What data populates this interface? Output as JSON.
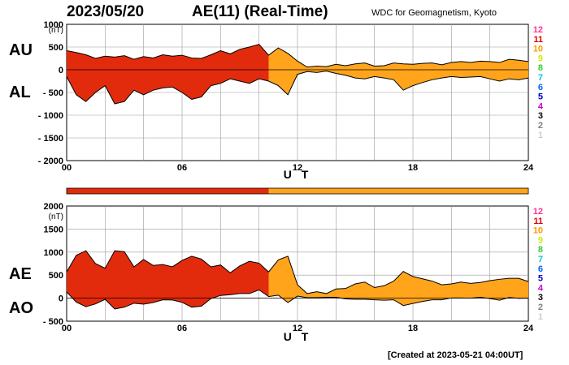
{
  "header": {
    "date": "2023/05/20",
    "title": "AE(11) (Real-Time)",
    "source": "WDC for Geomagnetism, Kyoto",
    "created": "[Created at 2023-05-21 04:00UT]"
  },
  "colors": {
    "k1": "#cccccc",
    "k2": "#808080",
    "k3": "#000000",
    "k4": "#cc00cc",
    "k5": "#0000cc",
    "k6": "#0066ff",
    "k7": "#00cccc",
    "k8": "#33cc33",
    "k9": "#ccee00",
    "k10": "#ff9900",
    "k11": "#dd0000",
    "k12": "#ff3399",
    "stations_key_10": "#ffaa00",
    "stations_key_11": "#cc3333"
  },
  "station_key": [
    "12",
    "11",
    "10",
    "9",
    "8",
    "7",
    "6",
    "5",
    "4",
    "3",
    "2",
    "1"
  ],
  "chart_data": [
    {
      "type": "area",
      "panel": "AU/AL",
      "labels": {
        "upper": "AU",
        "lower": "AL"
      },
      "unit": "(nT)",
      "xlabel": "U T",
      "ylim": [
        -2000,
        1000
      ],
      "yticks": [
        "1000",
        "500",
        "0",
        "- 500",
        "- 1000",
        "- 1500",
        "- 2000"
      ],
      "yticks_values": [
        1000,
        500,
        0,
        -500,
        -1000,
        -1500,
        -2000
      ],
      "xlim": [
        0,
        24
      ],
      "xticks": [
        "00",
        "06",
        "12",
        "18",
        "24"
      ],
      "grid": true,
      "x": [
        0,
        0.5,
        1,
        1.5,
        2,
        2.5,
        3,
        3.5,
        4,
        4.5,
        5,
        5.5,
        6,
        6.5,
        7,
        7.5,
        8,
        8.5,
        9,
        9.5,
        10,
        10.5,
        11,
        11.5,
        12,
        12.5,
        13,
        13.5,
        14,
        14.5,
        15,
        15.5,
        16,
        16.5,
        17,
        17.5,
        18,
        18.5,
        19,
        19.5,
        20,
        20.5,
        21,
        21.5,
        22,
        22.5,
        23,
        23.5,
        24
      ],
      "series": [
        {
          "name": "AU",
          "values": [
            420,
            380,
            330,
            250,
            300,
            280,
            310,
            230,
            290,
            260,
            330,
            300,
            320,
            260,
            250,
            330,
            420,
            350,
            450,
            500,
            560,
            320,
            480,
            360,
            190,
            60,
            80,
            70,
            120,
            90,
            130,
            150,
            80,
            90,
            150,
            130,
            120,
            140,
            150,
            110,
            160,
            180,
            160,
            190,
            180,
            160,
            230,
            210,
            180
          ]
        },
        {
          "name": "AL",
          "values": [
            -150,
            -550,
            -700,
            -500,
            -350,
            -750,
            -700,
            -450,
            -550,
            -450,
            -400,
            -380,
            -500,
            -650,
            -600,
            -350,
            -300,
            -200,
            -250,
            -300,
            -200,
            -250,
            -350,
            -550,
            -100,
            -40,
            -60,
            -30,
            -80,
            -120,
            -180,
            -200,
            -150,
            -180,
            -220,
            -450,
            -350,
            -280,
            -220,
            -180,
            -150,
            -170,
            -160,
            -150,
            -200,
            -250,
            -200,
            -220,
            -180
          ]
        }
      ],
      "station_count_bands": [
        {
          "from": 0,
          "to": 10.5,
          "stations": 11
        },
        {
          "from": 10.5,
          "to": 24,
          "stations": 10
        }
      ]
    },
    {
      "type": "area",
      "panel": "AE/AO",
      "labels": {
        "upper": "AE",
        "lower": "AO"
      },
      "unit": "(nT)",
      "xlabel": "U T",
      "ylim": [
        -500,
        2000
      ],
      "yticks": [
        "2000",
        "1500",
        "1000",
        "500",
        "0",
        "- 500"
      ],
      "yticks_values": [
        2000,
        1500,
        1000,
        500,
        0,
        -500
      ],
      "xlim": [
        0,
        24
      ],
      "xticks": [
        "00",
        "06",
        "12",
        "18",
        "24"
      ],
      "grid": true,
      "x": [
        0,
        0.5,
        1,
        1.5,
        2,
        2.5,
        3,
        3.5,
        4,
        4.5,
        5,
        5.5,
        6,
        6.5,
        7,
        7.5,
        8,
        8.5,
        9,
        9.5,
        10,
        10.5,
        11,
        11.5,
        12,
        12.5,
        13,
        13.5,
        14,
        14.5,
        15,
        15.5,
        16,
        16.5,
        17,
        17.5,
        18,
        18.5,
        19,
        19.5,
        20,
        20.5,
        21,
        21.5,
        22,
        22.5,
        23,
        23.5,
        24
      ],
      "series": [
        {
          "name": "AE",
          "values": [
            570,
            930,
            1030,
            750,
            650,
            1030,
            1010,
            680,
            840,
            710,
            730,
            680,
            820,
            910,
            850,
            680,
            720,
            550,
            700,
            800,
            760,
            570,
            830,
            910,
            290,
            100,
            140,
            100,
            200,
            210,
            310,
            350,
            230,
            270,
            370,
            580,
            470,
            420,
            370,
            290,
            310,
            350,
            320,
            340,
            380,
            410,
            430,
            430,
            360
          ]
        },
        {
          "name": "AO",
          "values": [
            135,
            -85,
            -185,
            -125,
            -25,
            -235,
            -195,
            -110,
            -130,
            -95,
            -35,
            -40,
            -90,
            -195,
            -175,
            -10,
            60,
            75,
            100,
            100,
            180,
            35,
            65,
            -95,
            45,
            10,
            10,
            20,
            20,
            -15,
            -25,
            -25,
            -35,
            -45,
            -35,
            -160,
            -115,
            -70,
            -35,
            -35,
            5,
            5,
            0,
            20,
            -10,
            -45,
            15,
            -5,
            0
          ]
        }
      ],
      "station_count_bands": [
        {
          "from": 0,
          "to": 10.5,
          "stations": 11
        },
        {
          "from": 10.5,
          "to": 24,
          "stations": 10
        }
      ]
    }
  ]
}
